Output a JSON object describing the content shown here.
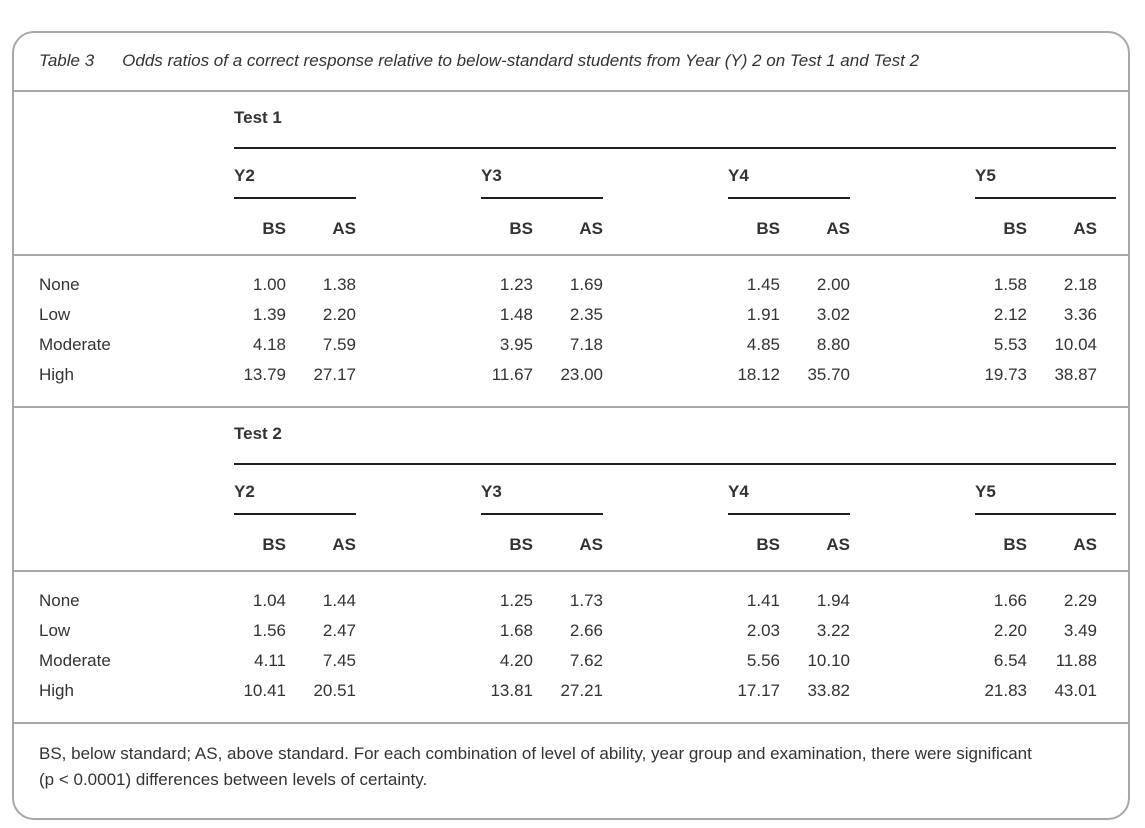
{
  "table": {
    "caption_label": "Table 3",
    "caption_text": "Odds ratios of a correct response relative to below-standard students from Year (Y) 2 on Test 1 and Test 2",
    "year_groups": [
      "Y2",
      "Y3",
      "Y4",
      "Y5"
    ],
    "col_subheaders": [
      "BS",
      "AS"
    ],
    "sections": [
      {
        "title": "Test 1",
        "rows": [
          {
            "label": "None",
            "values": [
              "1.00",
              "1.38",
              "1.23",
              "1.69",
              "1.45",
              "2.00",
              "1.58",
              "2.18"
            ]
          },
          {
            "label": "Low",
            "values": [
              "1.39",
              "2.20",
              "1.48",
              "2.35",
              "1.91",
              "3.02",
              "2.12",
              "3.36"
            ]
          },
          {
            "label": "Moderate",
            "values": [
              "4.18",
              "7.59",
              "3.95",
              "7.18",
              "4.85",
              "8.80",
              "5.53",
              "10.04"
            ]
          },
          {
            "label": "High",
            "values": [
              "13.79",
              "27.17",
              "11.67",
              "23.00",
              "18.12",
              "35.70",
              "19.73",
              "38.87"
            ]
          }
        ]
      },
      {
        "title": "Test 2",
        "rows": [
          {
            "label": "None",
            "values": [
              "1.04",
              "1.44",
              "1.25",
              "1.73",
              "1.41",
              "1.94",
              "1.66",
              "2.29"
            ]
          },
          {
            "label": "Low",
            "values": [
              "1.56",
              "2.47",
              "1.68",
              "2.66",
              "2.03",
              "3.22",
              "2.20",
              "3.49"
            ]
          },
          {
            "label": "Moderate",
            "values": [
              "4.11",
              "7.45",
              "4.20",
              "7.62",
              "5.56",
              "10.10",
              "6.54",
              "11.88"
            ]
          },
          {
            "label": "High",
            "values": [
              "10.41",
              "20.51",
              "13.81",
              "27.21",
              "17.17",
              "33.82",
              "21.83",
              "43.01"
            ]
          }
        ]
      }
    ],
    "footnote_line1": "BS, below standard; AS, above standard. For each combination of level of ability, year group and examination, there were significant",
    "footnote_line2": "(p < 0.0001) differences between levels of certainty.",
    "colors": {
      "card_border": "#a8a8a8",
      "rule": "#1f1f1f",
      "text": "#333333"
    }
  }
}
